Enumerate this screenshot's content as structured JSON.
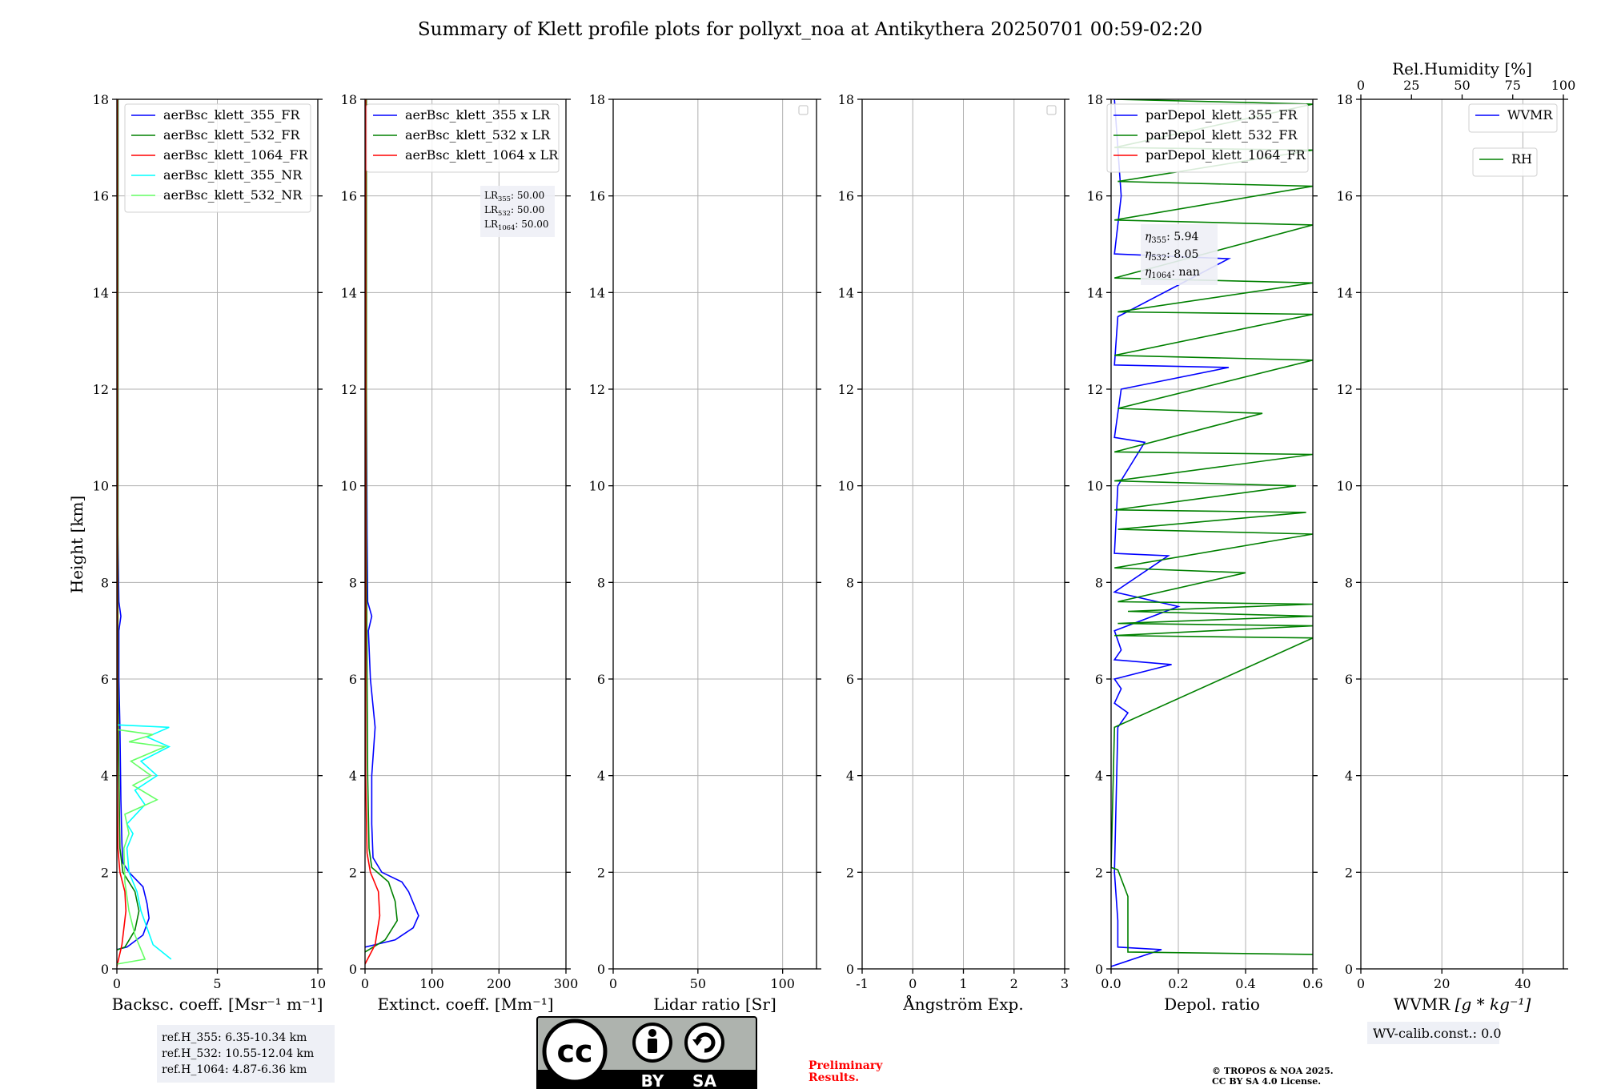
{
  "figure": {
    "title": "Summary of Klett profile plots for pollyxt_noa at Antikythera 20250701 00:59-02:20",
    "ylabel": "Height [km]",
    "footer": {
      "preliminary_line1": "Preliminary",
      "preliminary_line2": "Results.",
      "copyright_line1": "© TROPOS & NOA 2025.",
      "copyright_line2": "CC BY SA 4.0 License.",
      "license_badge": {
        "left": "BY",
        "right": "SA",
        "logo": "cc"
      }
    },
    "colors": {
      "blue": "#0000ff",
      "green": "#008000",
      "red": "#ff0000",
      "cyan": "#00ffff",
      "lightgreen": "#66ff66",
      "grid": "#b0b0b0",
      "annbox": "#eef0f6",
      "preliminary": "#ff0000"
    }
  },
  "chart_data": [
    {
      "type": "line",
      "id": "bsc",
      "xlabel": "Backsc. coeff. [Msr⁻¹ m⁻¹]",
      "xlim": [
        0,
        10
      ],
      "xticks": [
        0,
        5,
        10
      ],
      "ylim": [
        0,
        18
      ],
      "yticks": [
        0,
        2,
        4,
        6,
        8,
        10,
        12,
        14,
        16,
        18
      ],
      "legend": [
        "aerBsc_klett_355_FR",
        "aerBsc_klett_532_FR",
        "aerBsc_klett_1064_FR",
        "aerBsc_klett_355_NR",
        "aerBsc_klett_532_NR"
      ],
      "legend_colors": [
        "blue",
        "green",
        "red",
        "cyan",
        "lightgreen"
      ],
      "annotation": [
        "ref.H_355: 6.35-10.34 km",
        "ref.H_532: 10.55-12.04 km",
        "ref.H_1064: 4.87-6.36 km"
      ],
      "series": [
        {
          "name": "aerBsc_klett_355_FR",
          "color": "blue",
          "points": [
            [
              -0.5,
              0.35
            ],
            [
              0.5,
              0.45
            ],
            [
              1.3,
              0.7
            ],
            [
              1.6,
              1.05
            ],
            [
              1.5,
              1.35
            ],
            [
              1.3,
              1.7
            ],
            [
              0.6,
              2.0
            ],
            [
              0.3,
              2.2
            ],
            [
              0.25,
              2.6
            ],
            [
              0.2,
              3.5
            ],
            [
              0.15,
              5.0
            ],
            [
              0.1,
              6.0
            ],
            [
              0.1,
              7.0
            ],
            [
              0.2,
              7.3
            ],
            [
              0.1,
              7.6
            ],
            [
              0.05,
              9.0
            ],
            [
              0.05,
              12.0
            ],
            [
              0.05,
              18.0
            ]
          ]
        },
        {
          "name": "aerBsc_klett_532_FR",
          "color": "green",
          "points": [
            [
              -0.3,
              0.35
            ],
            [
              0.4,
              0.45
            ],
            [
              0.9,
              0.8
            ],
            [
              1.1,
              1.2
            ],
            [
              0.9,
              1.6
            ],
            [
              0.3,
              2.0
            ],
            [
              0.15,
              2.5
            ],
            [
              0.1,
              4.0
            ],
            [
              0.05,
              6.0
            ],
            [
              0.05,
              12.0
            ],
            [
              0.05,
              18.0
            ]
          ]
        },
        {
          "name": "aerBsc_klett_1064_FR",
          "color": "red",
          "points": [
            [
              0.0,
              0.05
            ],
            [
              0.25,
              0.5
            ],
            [
              0.45,
              1.2
            ],
            [
              0.4,
              1.6
            ],
            [
              0.15,
              2.0
            ],
            [
              0.05,
              2.5
            ],
            [
              0.02,
              4.0
            ],
            [
              0.02,
              10.0
            ],
            [
              0.02,
              18.0
            ]
          ]
        },
        {
          "name": "aerBsc_klett_355_NR",
          "color": "cyan",
          "points": [
            [
              2.7,
              0.2
            ],
            [
              1.8,
              0.5
            ],
            [
              1.2,
              1.2
            ],
            [
              1.0,
              1.6
            ],
            [
              0.6,
              2.0
            ],
            [
              0.5,
              2.5
            ],
            [
              0.8,
              2.8
            ],
            [
              0.5,
              3.0
            ],
            [
              1.4,
              3.4
            ],
            [
              0.9,
              3.7
            ],
            [
              2.0,
              4.0
            ],
            [
              1.2,
              4.3
            ],
            [
              2.6,
              4.6
            ],
            [
              1.5,
              4.8
            ],
            [
              2.6,
              5.0
            ],
            [
              0.05,
              5.05
            ]
          ]
        },
        {
          "name": "aerBsc_klett_532_NR",
          "color": "lightgreen",
          "points": [
            [
              0.0,
              0.1
            ],
            [
              1.4,
              0.2
            ],
            [
              0.9,
              0.7
            ],
            [
              0.6,
              1.2
            ],
            [
              0.4,
              1.8
            ],
            [
              0.35,
              2.5
            ],
            [
              0.6,
              2.8
            ],
            [
              0.4,
              3.2
            ],
            [
              2.0,
              3.5
            ],
            [
              0.8,
              3.8
            ],
            [
              1.7,
              4.0
            ],
            [
              0.7,
              4.3
            ],
            [
              2.4,
              4.6
            ],
            [
              0.6,
              4.7
            ],
            [
              1.8,
              4.85
            ],
            [
              0.05,
              4.95
            ]
          ]
        }
      ]
    },
    {
      "type": "line",
      "id": "ext",
      "xlabel": "Extinct. coeff. [Mm⁻¹]",
      "xlim": [
        0,
        300
      ],
      "xticks": [
        0,
        100,
        200,
        300
      ],
      "ylim": [
        0,
        18
      ],
      "yticks": [
        0,
        2,
        4,
        6,
        8,
        10,
        12,
        14,
        16,
        18
      ],
      "legend": [
        "aerBsc_klett_355 x LR",
        "aerBsc_klett_532 x LR",
        "aerBsc_klett_1064 x LR"
      ],
      "legend_colors": [
        "blue",
        "green",
        "red"
      ],
      "annotation": [
        {
          "base": "LR",
          "sub": "355",
          "text": ": 50.00"
        },
        {
          "base": "LR",
          "sub": "532",
          "text": ": 50.00"
        },
        {
          "base": "LR",
          "sub": "1064",
          "text": ": 50.00"
        }
      ],
      "series": [
        {
          "name": "aerBsc_klett_355 x LR",
          "color": "blue",
          "points": [
            [
              0,
              0.45
            ],
            [
              45,
              0.6
            ],
            [
              72,
              0.85
            ],
            [
              80,
              1.1
            ],
            [
              65,
              1.6
            ],
            [
              55,
              1.8
            ],
            [
              25,
              2.0
            ],
            [
              12,
              2.3
            ],
            [
              10,
              3.0
            ],
            [
              10,
              4.0
            ],
            [
              15,
              5.0
            ],
            [
              8,
              6.0
            ],
            [
              5,
              7.0
            ],
            [
              10,
              7.3
            ],
            [
              4,
              7.6
            ],
            [
              3,
              9.0
            ],
            [
              2,
              12.0
            ],
            [
              2,
              18.0
            ]
          ]
        },
        {
          "name": "aerBsc_klett_532 x LR",
          "color": "green",
          "points": [
            [
              0,
              0.35
            ],
            [
              30,
              0.6
            ],
            [
              48,
              1.0
            ],
            [
              45,
              1.4
            ],
            [
              35,
              1.8
            ],
            [
              10,
              2.1
            ],
            [
              6,
              2.5
            ],
            [
              4,
              4.0
            ],
            [
              3,
              6.0
            ],
            [
              2,
              9.0
            ],
            [
              2,
              15.0
            ],
            [
              2,
              18.0
            ]
          ]
        },
        {
          "name": "aerBsc_klett_1064 x LR",
          "color": "red",
          "points": [
            [
              0,
              0.1
            ],
            [
              15,
              0.5
            ],
            [
              22,
              1.1
            ],
            [
              20,
              1.6
            ],
            [
              8,
              2.0
            ],
            [
              3,
              2.4
            ],
            [
              1,
              4.0
            ],
            [
              1,
              10.0
            ],
            [
              1,
              18.0
            ]
          ]
        }
      ]
    },
    {
      "type": "line",
      "id": "lr",
      "xlabel": "Lidar ratio [Sr]",
      "xlim": [
        0,
        120
      ],
      "xticks": [
        0,
        50,
        100
      ],
      "ylim": [
        0,
        18
      ],
      "yticks": [
        0,
        2,
        4,
        6,
        8,
        10,
        12,
        14,
        16,
        18
      ],
      "legend": [],
      "series": []
    },
    {
      "type": "line",
      "id": "ang",
      "xlabel": "Ångström Exp.",
      "xlim": [
        -1,
        3
      ],
      "xticks": [
        -1,
        0,
        1,
        2,
        3
      ],
      "ylim": [
        0,
        18
      ],
      "yticks": [
        0,
        2,
        4,
        6,
        8,
        10,
        12,
        14,
        16,
        18
      ],
      "legend": [],
      "series": []
    },
    {
      "type": "line",
      "id": "depol",
      "xlabel": "Depol. ratio",
      "xlim": [
        0,
        0.6
      ],
      "xticks": [
        0.0,
        0.2,
        0.4,
        0.6
      ],
      "ylim": [
        0,
        18
      ],
      "yticks": [
        0,
        2,
        4,
        6,
        8,
        10,
        12,
        14,
        16,
        18
      ],
      "legend": [
        "parDepol_klett_355_FR",
        "parDepol_klett_532_FR",
        "parDepol_klett_1064_FR"
      ],
      "legend_colors": [
        "blue",
        "green",
        "red"
      ],
      "annotation": [
        {
          "base": "η",
          "sub": "355",
          "text": ": 5.94"
        },
        {
          "base": "η",
          "sub": "532",
          "text": ": 8.05"
        },
        {
          "base": "η",
          "sub": "1064",
          "text": ": nan"
        }
      ],
      "series": [
        {
          "name": "parDepol_klett_355_FR",
          "color": "blue",
          "points": [
            [
              0.0,
              0.05
            ],
            [
              0.15,
              0.4
            ],
            [
              0.02,
              0.45
            ],
            [
              0.02,
              1.0
            ],
            [
              0.01,
              2.0
            ],
            [
              0.02,
              5.0
            ],
            [
              0.05,
              5.3
            ],
            [
              0.01,
              5.5
            ],
            [
              0.03,
              5.8
            ],
            [
              0.01,
              6.0
            ],
            [
              0.18,
              6.3
            ],
            [
              0.01,
              6.4
            ],
            [
              0.03,
              6.6
            ],
            [
              0.01,
              7.0
            ],
            [
              0.2,
              7.5
            ],
            [
              0.01,
              7.8
            ],
            [
              0.17,
              8.55
            ],
            [
              0.01,
              8.6
            ],
            [
              0.02,
              10.0
            ],
            [
              0.1,
              10.9
            ],
            [
              0.01,
              11.0
            ],
            [
              0.03,
              12.0
            ],
            [
              0.35,
              12.45
            ],
            [
              0.01,
              12.5
            ],
            [
              0.02,
              13.5
            ],
            [
              0.35,
              14.7
            ],
            [
              0.01,
              14.8
            ],
            [
              0.03,
              16.0
            ],
            [
              0.01,
              18.0
            ]
          ]
        },
        {
          "name": "parDepol_klett_532_FR",
          "color": "green",
          "points": [
            [
              0.6,
              0.3
            ],
            [
              0.05,
              0.35
            ],
            [
              0.05,
              1.0
            ],
            [
              0.05,
              1.5
            ],
            [
              0.02,
              2.05
            ],
            [
              0.0,
              2.1
            ],
            [
              0.01,
              5.0
            ],
            [
              0.6,
              6.85
            ],
            [
              0.01,
              6.9
            ],
            [
              0.6,
              7.1
            ],
            [
              0.02,
              7.15
            ],
            [
              0.6,
              7.3
            ],
            [
              0.05,
              7.4
            ],
            [
              0.6,
              7.55
            ],
            [
              0.02,
              7.6
            ],
            [
              0.4,
              8.2
            ],
            [
              0.01,
              8.3
            ],
            [
              0.6,
              9.0
            ],
            [
              0.02,
              9.1
            ],
            [
              0.58,
              9.45
            ],
            [
              0.01,
              9.5
            ],
            [
              0.55,
              10.0
            ],
            [
              0.01,
              10.1
            ],
            [
              0.6,
              10.65
            ],
            [
              0.01,
              10.7
            ],
            [
              0.45,
              11.5
            ],
            [
              0.02,
              11.6
            ],
            [
              0.6,
              12.6
            ],
            [
              0.01,
              12.7
            ],
            [
              0.6,
              13.55
            ],
            [
              0.02,
              13.6
            ],
            [
              0.6,
              14.2
            ],
            [
              0.01,
              14.3
            ],
            [
              0.6,
              15.4
            ],
            [
              0.01,
              15.5
            ],
            [
              0.6,
              16.2
            ],
            [
              0.02,
              16.3
            ],
            [
              0.6,
              16.95
            ],
            [
              0.01,
              17.0
            ],
            [
              0.6,
              17.9
            ],
            [
              0.01,
              18.0
            ]
          ]
        }
      ]
    },
    {
      "type": "line",
      "id": "wv",
      "xlabel": "WVMR",
      "xlabel_math": "[g * kg⁻¹]",
      "xlim": [
        0,
        50
      ],
      "xticks": [
        0,
        20,
        40
      ],
      "top_xlabel": "Rel.Humidity [%]",
      "top_xlim": [
        0,
        100
      ],
      "top_xticks": [
        0,
        25,
        50,
        75,
        100
      ],
      "ylim": [
        0,
        18
      ],
      "yticks": [
        0,
        2,
        4,
        6,
        8,
        10,
        12,
        14,
        16,
        18
      ],
      "legend": [
        "WVMR"
      ],
      "legend_colors": [
        "blue"
      ],
      "legend2": [
        "RH"
      ],
      "legend2_colors": [
        "green"
      ],
      "annotation": [
        "WV-calib.const.: 0.0"
      ],
      "series": []
    }
  ]
}
